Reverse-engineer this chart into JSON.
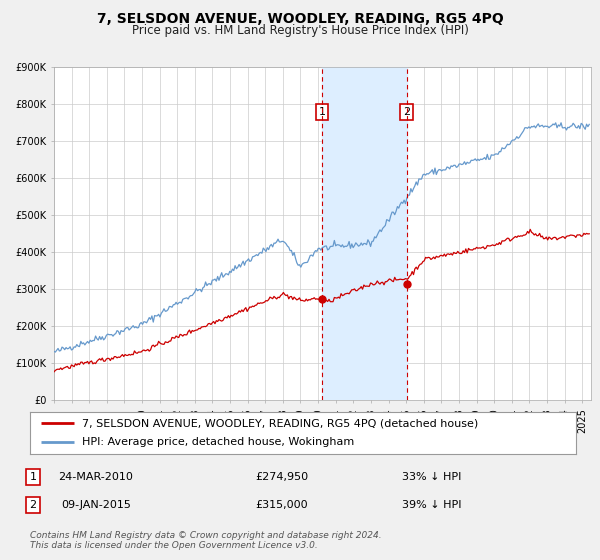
{
  "title": "7, SELSDON AVENUE, WOODLEY, READING, RG5 4PQ",
  "subtitle": "Price paid vs. HM Land Registry's House Price Index (HPI)",
  "ylim": [
    0,
    900000
  ],
  "yticks": [
    0,
    100000,
    200000,
    300000,
    400000,
    500000,
    600000,
    700000,
    800000,
    900000
  ],
  "ytick_labels": [
    "£0",
    "£100K",
    "£200K",
    "£300K",
    "£400K",
    "£500K",
    "£600K",
    "£700K",
    "£800K",
    "£900K"
  ],
  "xlim_start": 1995.0,
  "xlim_end": 2025.5,
  "background_color": "#f0f0f0",
  "plot_bg_color": "#ffffff",
  "grid_color": "#cccccc",
  "red_line_color": "#cc0000",
  "blue_line_color": "#6699cc",
  "marker1_x": 2010.23,
  "marker1_y": 274950,
  "marker2_x": 2015.03,
  "marker2_y": 315000,
  "vline1_x": 2010.23,
  "vline2_x": 2015.03,
  "shade_color": "#ddeeff",
  "legend_label_red": "7, SELSDON AVENUE, WOODLEY, READING, RG5 4PQ (detached house)",
  "legend_label_blue": "HPI: Average price, detached house, Wokingham",
  "annotation1_date": "24-MAR-2010",
  "annotation1_price": "£274,950",
  "annotation1_hpi": "33% ↓ HPI",
  "annotation2_date": "09-JAN-2015",
  "annotation2_price": "£315,000",
  "annotation2_hpi": "39% ↓ HPI",
  "footer_text": "Contains HM Land Registry data © Crown copyright and database right 2024.\nThis data is licensed under the Open Government Licence v3.0.",
  "title_fontsize": 10,
  "subtitle_fontsize": 8.5,
  "tick_fontsize": 7,
  "legend_fontsize": 8,
  "annotation_fontsize": 8,
  "footer_fontsize": 6.5
}
